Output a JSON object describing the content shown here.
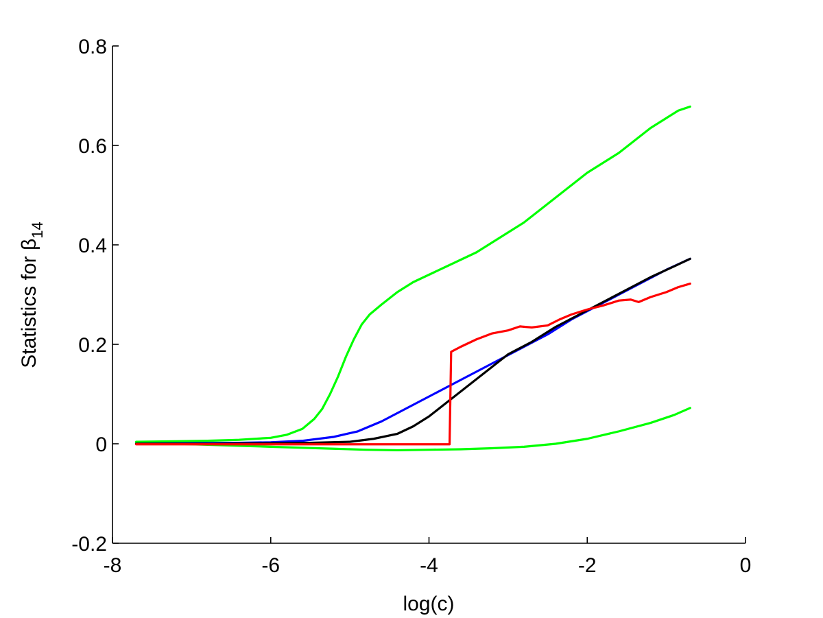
{
  "chart_data": {
    "type": "line",
    "title": "",
    "xlabel": "log(c)",
    "ylabel_prefix": "Statistics for ",
    "ylabel_symbol": "β",
    "ylabel_subscript": "14",
    "xlim": [
      -8,
      0
    ],
    "ylim": [
      -0.2,
      0.8
    ],
    "xticks": [
      -8,
      -6,
      -4,
      -2,
      0
    ],
    "yticks": [
      -0.2,
      0,
      0.2,
      0.4,
      0.6,
      0.8
    ],
    "xtick_labels": [
      "-8",
      "-6",
      "-4",
      "-2",
      "0"
    ],
    "ytick_labels": [
      "-0.2",
      "0",
      "0.2",
      "0.4",
      "0.6",
      "0.8"
    ],
    "grid": false,
    "legend": null,
    "series": [
      {
        "color": "#00ff00",
        "points": [
          [
            -7.7,
            0.004
          ],
          [
            -7.2,
            0.005
          ],
          [
            -6.8,
            0.006
          ],
          [
            -6.4,
            0.008
          ],
          [
            -6.0,
            0.012
          ],
          [
            -5.8,
            0.018
          ],
          [
            -5.6,
            0.03
          ],
          [
            -5.45,
            0.05
          ],
          [
            -5.35,
            0.07
          ],
          [
            -5.25,
            0.1
          ],
          [
            -5.15,
            0.135
          ],
          [
            -5.05,
            0.175
          ],
          [
            -4.95,
            0.21
          ],
          [
            -4.85,
            0.24
          ],
          [
            -4.75,
            0.26
          ],
          [
            -4.6,
            0.28
          ],
          [
            -4.4,
            0.305
          ],
          [
            -4.2,
            0.325
          ],
          [
            -4.0,
            0.34
          ],
          [
            -3.8,
            0.355
          ],
          [
            -3.6,
            0.37
          ],
          [
            -3.4,
            0.385
          ],
          [
            -3.2,
            0.405
          ],
          [
            -3.0,
            0.425
          ],
          [
            -2.8,
            0.445
          ],
          [
            -2.6,
            0.47
          ],
          [
            -2.4,
            0.495
          ],
          [
            -2.2,
            0.52
          ],
          [
            -2.0,
            0.545
          ],
          [
            -1.8,
            0.565
          ],
          [
            -1.6,
            0.585
          ],
          [
            -1.4,
            0.61
          ],
          [
            -1.2,
            0.635
          ],
          [
            -1.0,
            0.655
          ],
          [
            -0.85,
            0.67
          ],
          [
            -0.7,
            0.678
          ]
        ]
      },
      {
        "color": "#00ff00",
        "points": [
          [
            -7.7,
            0.002
          ],
          [
            -7.2,
            0.0
          ],
          [
            -6.8,
            -0.002
          ],
          [
            -6.4,
            -0.004
          ],
          [
            -6.0,
            -0.006
          ],
          [
            -5.6,
            -0.008
          ],
          [
            -5.2,
            -0.01
          ],
          [
            -4.8,
            -0.012
          ],
          [
            -4.4,
            -0.013
          ],
          [
            -4.0,
            -0.012
          ],
          [
            -3.6,
            -0.011
          ],
          [
            -3.2,
            -0.009
          ],
          [
            -2.8,
            -0.006
          ],
          [
            -2.4,
            0.0
          ],
          [
            -2.0,
            0.01
          ],
          [
            -1.6,
            0.025
          ],
          [
            -1.2,
            0.042
          ],
          [
            -0.9,
            0.058
          ],
          [
            -0.7,
            0.072
          ]
        ]
      },
      {
        "color": "#0000ff",
        "points": [
          [
            -7.7,
            0.0
          ],
          [
            -7.0,
            0.001
          ],
          [
            -6.4,
            0.002
          ],
          [
            -6.0,
            0.003
          ],
          [
            -5.6,
            0.006
          ],
          [
            -5.2,
            0.014
          ],
          [
            -4.9,
            0.025
          ],
          [
            -4.6,
            0.045
          ],
          [
            -4.3,
            0.07
          ],
          [
            -4.0,
            0.095
          ],
          [
            -3.7,
            0.12
          ],
          [
            -3.4,
            0.145
          ],
          [
            -3.1,
            0.17
          ],
          [
            -2.8,
            0.195
          ],
          [
            -2.5,
            0.22
          ],
          [
            -2.2,
            0.25
          ],
          [
            -1.9,
            0.275
          ],
          [
            -1.6,
            0.3
          ],
          [
            -1.3,
            0.325
          ],
          [
            -1.0,
            0.35
          ],
          [
            -0.7,
            0.372
          ]
        ]
      },
      {
        "color": "#000000",
        "points": [
          [
            -7.7,
            0.0
          ],
          [
            -6.8,
            0.0
          ],
          [
            -6.0,
            0.001
          ],
          [
            -5.5,
            0.002
          ],
          [
            -5.0,
            0.004
          ],
          [
            -4.7,
            0.01
          ],
          [
            -4.4,
            0.02
          ],
          [
            -4.2,
            0.035
          ],
          [
            -4.0,
            0.055
          ],
          [
            -3.8,
            0.08
          ],
          [
            -3.6,
            0.105
          ],
          [
            -3.4,
            0.13
          ],
          [
            -3.2,
            0.155
          ],
          [
            -3.0,
            0.18
          ],
          [
            -2.7,
            0.205
          ],
          [
            -2.4,
            0.235
          ],
          [
            -2.1,
            0.26
          ],
          [
            -1.8,
            0.285
          ],
          [
            -1.5,
            0.31
          ],
          [
            -1.2,
            0.335
          ],
          [
            -0.9,
            0.357
          ],
          [
            -0.7,
            0.372
          ]
        ]
      },
      {
        "color": "#ff0000",
        "points": [
          [
            -7.7,
            -0.001
          ],
          [
            -6.0,
            -0.001
          ],
          [
            -4.5,
            -0.001
          ],
          [
            -3.74,
            -0.001
          ],
          [
            -3.72,
            0.185
          ],
          [
            -3.6,
            0.195
          ],
          [
            -3.4,
            0.21
          ],
          [
            -3.2,
            0.222
          ],
          [
            -3.0,
            0.228
          ],
          [
            -2.85,
            0.236
          ],
          [
            -2.7,
            0.234
          ],
          [
            -2.5,
            0.238
          ],
          [
            -2.35,
            0.25
          ],
          [
            -2.2,
            0.26
          ],
          [
            -2.0,
            0.27
          ],
          [
            -1.8,
            0.278
          ],
          [
            -1.6,
            0.288
          ],
          [
            -1.45,
            0.29
          ],
          [
            -1.35,
            0.285
          ],
          [
            -1.2,
            0.295
          ],
          [
            -1.0,
            0.305
          ],
          [
            -0.85,
            0.315
          ],
          [
            -0.7,
            0.322
          ]
        ]
      }
    ]
  }
}
